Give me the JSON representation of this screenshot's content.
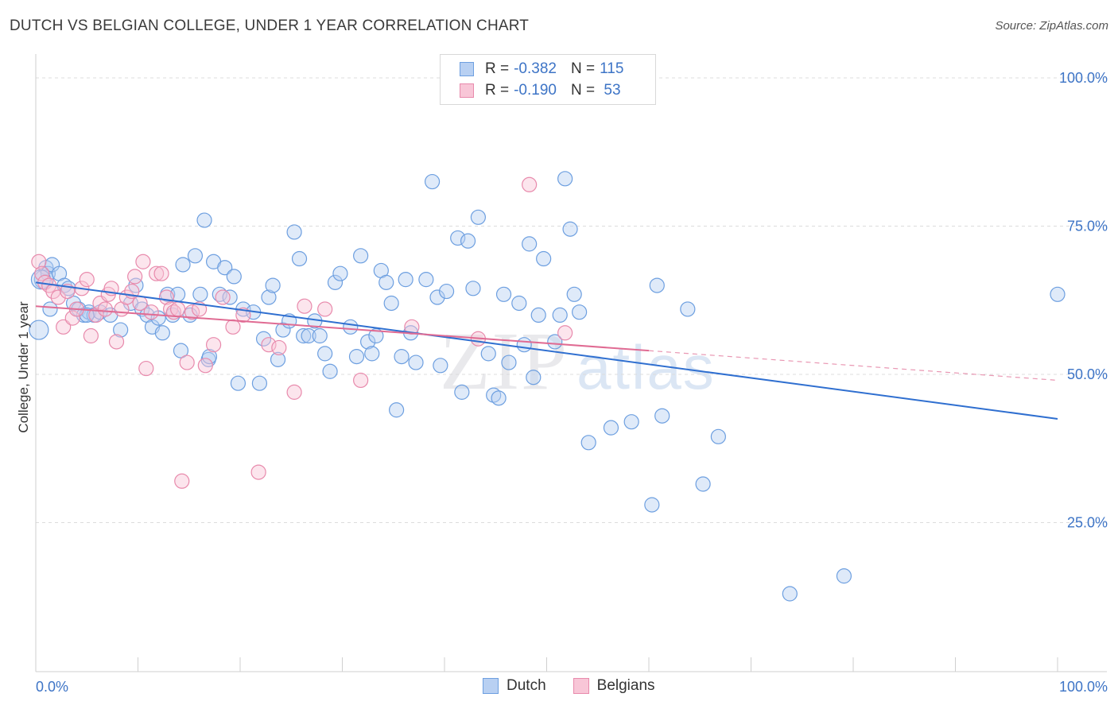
{
  "title": "DUTCH VS BELGIAN COLLEGE, UNDER 1 YEAR CORRELATION CHART",
  "source": "Source: ZipAtlas.com",
  "watermark": {
    "zip": "ZIP",
    "atlas": "atlas"
  },
  "legend": {
    "rows": [
      {
        "r_label": "R = ",
        "r_value": "-0.382",
        "n_label": "N = ",
        "n_value": "115",
        "color": "#6d9fe0",
        "fill": "#b8d0f2"
      },
      {
        "r_label": "R = ",
        "r_value": "-0.190",
        "n_label": "N = ",
        "n_value": " 53",
        "color": "#e88aac",
        "fill": "#f8c6d7"
      }
    ]
  },
  "bottom_legend": [
    {
      "label": "Dutch",
      "color": "#6d9fe0",
      "fill": "#b8d0f2"
    },
    {
      "label": "Belgians",
      "color": "#e88aac",
      "fill": "#f8c6d7"
    }
  ],
  "chart_data": {
    "type": "scatter",
    "xlabel": "",
    "ylabel": "College, Under 1 year",
    "xlim": [
      0,
      100
    ],
    "ylim": [
      0,
      100
    ],
    "x_tick_labels": [
      {
        "value": 0,
        "label": "0.0%"
      },
      {
        "value": 100,
        "label": "100.0%"
      }
    ],
    "y_tick_labels": [
      {
        "value": 100,
        "label": "100.0%"
      },
      {
        "value": 75,
        "label": "75.0%"
      },
      {
        "value": 50,
        "label": "50.0%"
      },
      {
        "value": 25,
        "label": "25.0%"
      }
    ],
    "grid": "horizontal dashed",
    "series": [
      {
        "name": "Dutch",
        "color": "#6d9fe0",
        "fill": "#b8d0f2",
        "trend": {
          "x": [
            0,
            100
          ],
          "y": [
            65.5,
            42.5
          ],
          "style": "solid",
          "color": "#2f6fd0"
        },
        "points": [
          [
            0.3,
            57.5
          ],
          [
            0.8,
            66
          ],
          [
            1,
            68
          ],
          [
            1.2,
            67
          ],
          [
            1.6,
            68.5
          ],
          [
            2.3,
            67
          ],
          [
            2.8,
            65
          ],
          [
            3.2,
            64.5
          ],
          [
            3.7,
            62
          ],
          [
            4.2,
            61
          ],
          [
            4.7,
            60
          ],
          [
            5.2,
            60.5
          ],
          [
            5.7,
            60
          ],
          [
            6.3,
            60.5
          ],
          [
            7.3,
            60
          ],
          [
            8.3,
            57.5
          ],
          [
            9.3,
            62
          ],
          [
            9.8,
            65
          ],
          [
            10.4,
            61
          ],
          [
            10.9,
            60
          ],
          [
            11.4,
            58
          ],
          [
            12.0,
            59.5
          ],
          [
            12.4,
            57
          ],
          [
            12.9,
            63.5
          ],
          [
            13.4,
            60
          ],
          [
            13.9,
            63.5
          ],
          [
            14.2,
            54
          ],
          [
            14.4,
            68.5
          ],
          [
            15.1,
            60
          ],
          [
            15.6,
            70
          ],
          [
            16.1,
            63.5
          ],
          [
            16.5,
            76
          ],
          [
            16.9,
            52.5
          ],
          [
            17.4,
            69
          ],
          [
            18.0,
            63.5
          ],
          [
            18.5,
            68
          ],
          [
            19.0,
            63
          ],
          [
            19.4,
            66.5
          ],
          [
            19.8,
            48.5
          ],
          [
            20.3,
            61
          ],
          [
            21.3,
            60.5
          ],
          [
            21.9,
            48.5
          ],
          [
            22.3,
            56
          ],
          [
            22.8,
            63
          ],
          [
            23.2,
            65
          ],
          [
            23.7,
            52.5
          ],
          [
            24.2,
            57.5
          ],
          [
            24.8,
            59
          ],
          [
            25.3,
            74
          ],
          [
            25.8,
            69.5
          ],
          [
            26.2,
            56.5
          ],
          [
            26.7,
            56.5
          ],
          [
            27.3,
            59
          ],
          [
            27.8,
            56.5
          ],
          [
            28.3,
            53.5
          ],
          [
            28.8,
            50.5
          ],
          [
            29.3,
            65.5
          ],
          [
            29.8,
            67
          ],
          [
            30.8,
            58
          ],
          [
            31.4,
            53
          ],
          [
            31.8,
            70
          ],
          [
            32.5,
            55.5
          ],
          [
            32.9,
            53.5
          ],
          [
            33.3,
            56.5
          ],
          [
            33.8,
            67.5
          ],
          [
            34.3,
            65.5
          ],
          [
            34.8,
            62
          ],
          [
            35.3,
            44
          ],
          [
            35.8,
            53
          ],
          [
            36.2,
            66
          ],
          [
            36.7,
            57
          ],
          [
            37.2,
            52
          ],
          [
            38.2,
            66
          ],
          [
            38.8,
            82.5
          ],
          [
            39.3,
            63
          ],
          [
            39.6,
            51.5
          ],
          [
            40.2,
            64
          ],
          [
            41.3,
            73
          ],
          [
            41.7,
            47
          ],
          [
            42.3,
            72.5
          ],
          [
            42.8,
            64.5
          ],
          [
            43.3,
            76.5
          ],
          [
            44.3,
            53.5
          ],
          [
            44.8,
            46.5
          ],
          [
            45.3,
            46
          ],
          [
            45.8,
            63.5
          ],
          [
            46.3,
            52
          ],
          [
            47.3,
            62
          ],
          [
            47.8,
            55
          ],
          [
            48.3,
            72
          ],
          [
            48.7,
            49.5
          ],
          [
            49.2,
            60
          ],
          [
            49.7,
            69.5
          ],
          [
            50.8,
            55.5
          ],
          [
            51.3,
            60
          ],
          [
            51.8,
            83
          ],
          [
            52.3,
            74.5
          ],
          [
            52.7,
            63.5
          ],
          [
            53.2,
            60.5
          ],
          [
            54.1,
            38.5
          ],
          [
            56.3,
            41
          ],
          [
            58.3,
            42
          ],
          [
            60.3,
            28
          ],
          [
            60.8,
            65
          ],
          [
            61.3,
            43
          ],
          [
            63.8,
            61
          ],
          [
            65.3,
            31.5
          ],
          [
            66.8,
            39.5
          ],
          [
            73.8,
            13
          ],
          [
            79.1,
            16
          ],
          [
            100,
            63.5
          ],
          [
            0.5,
            66
          ],
          [
            1.4,
            61
          ],
          [
            5,
            60
          ],
          [
            17,
            53
          ]
        ]
      },
      {
        "name": "Belgians",
        "color": "#e88aac",
        "fill": "#f8c6d7",
        "trend": {
          "x": [
            0,
            60
          ],
          "y": [
            61.5,
            54
          ],
          "style": "solid",
          "color": "#e06b93",
          "extension": {
            "x": [
              60,
              100
            ],
            "y": [
              54,
              49
            ],
            "style": "dashed"
          }
        },
        "points": [
          [
            0.3,
            69
          ],
          [
            0.6,
            67
          ],
          [
            0.9,
            65.5
          ],
          [
            1.3,
            65
          ],
          [
            1.7,
            64
          ],
          [
            2.2,
            63
          ],
          [
            2.7,
            58
          ],
          [
            3.1,
            64
          ],
          [
            3.6,
            59.5
          ],
          [
            4.0,
            61
          ],
          [
            4.5,
            64.5
          ],
          [
            5.0,
            66
          ],
          [
            5.4,
            56.5
          ],
          [
            5.9,
            60
          ],
          [
            6.3,
            62
          ],
          [
            6.8,
            61
          ],
          [
            7.1,
            63.5
          ],
          [
            7.4,
            64.5
          ],
          [
            7.9,
            55.5
          ],
          [
            8.4,
            61
          ],
          [
            8.9,
            63
          ],
          [
            9.4,
            64
          ],
          [
            9.7,
            66.5
          ],
          [
            10.2,
            62
          ],
          [
            10.5,
            69
          ],
          [
            10.8,
            51
          ],
          [
            11.3,
            60.5
          ],
          [
            11.8,
            67
          ],
          [
            12.3,
            67
          ],
          [
            12.8,
            63
          ],
          [
            13.2,
            61
          ],
          [
            13.5,
            60.5
          ],
          [
            13.9,
            61
          ],
          [
            14.3,
            32
          ],
          [
            14.8,
            52
          ],
          [
            15.3,
            60.5
          ],
          [
            16.0,
            61
          ],
          [
            16.6,
            51.5
          ],
          [
            17.4,
            55
          ],
          [
            18.3,
            63
          ],
          [
            19.3,
            58
          ],
          [
            20.3,
            60
          ],
          [
            21.8,
            33.5
          ],
          [
            22.8,
            55
          ],
          [
            23.8,
            54.5
          ],
          [
            25.3,
            47
          ],
          [
            26.3,
            61.5
          ],
          [
            28.3,
            61
          ],
          [
            31.8,
            49
          ],
          [
            36.8,
            58
          ],
          [
            43.3,
            56
          ],
          [
            48.3,
            82
          ],
          [
            51.8,
            57
          ]
        ]
      }
    ]
  }
}
